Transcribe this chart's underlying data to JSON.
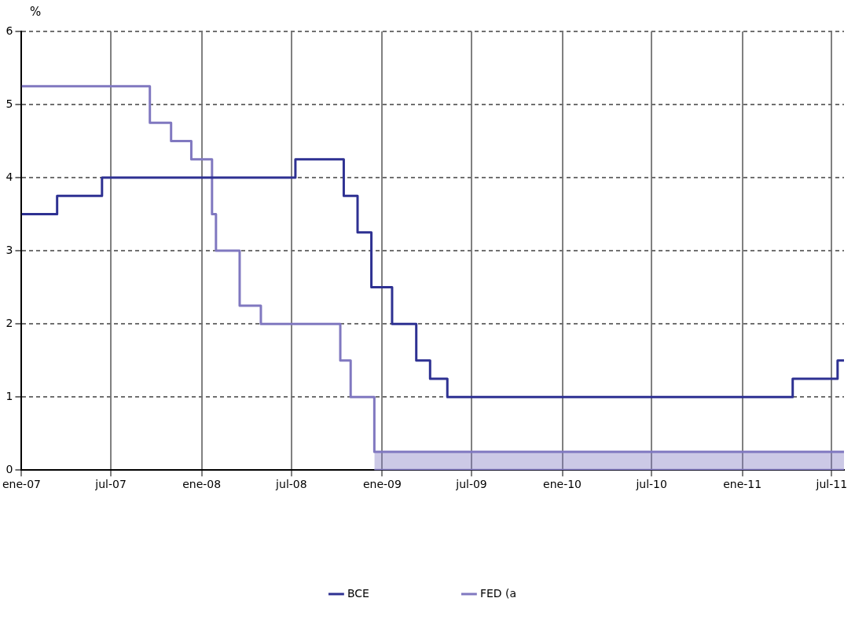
{
  "chart_data": {
    "type": "step",
    "ylabel": "%",
    "xlim": [
      "2007-01-01",
      "2011-07-26"
    ],
    "xticks": [
      {
        "value": "2007-01-01",
        "label": "ene-07"
      },
      {
        "value": "2007-07-01",
        "label": "jul-07"
      },
      {
        "value": "2008-01-01",
        "label": "ene-08"
      },
      {
        "value": "2008-07-01",
        "label": "jul-08"
      },
      {
        "value": "2009-01-01",
        "label": "ene-09"
      },
      {
        "value": "2009-07-01",
        "label": "jul-09"
      },
      {
        "value": "2010-01-01",
        "label": "ene-10"
      },
      {
        "value": "2010-07-01",
        "label": "jul-10"
      },
      {
        "value": "2011-01-01",
        "label": "ene-11"
      },
      {
        "value": "2011-07-01",
        "label": "jul-11"
      }
    ],
    "ylim": [
      0,
      6
    ],
    "yticks": [
      0,
      1,
      2,
      3,
      4,
      5,
      6
    ],
    "grid": true,
    "legend": "bottom",
    "line_style": "solid",
    "marker": "none",
    "series": [
      {
        "name": "BCE",
        "color": "#2e3192",
        "x": [
          "2007-01-01",
          "2007-03-14",
          "2007-06-13",
          "2008-07-09",
          "2008-10-15",
          "2008-11-12",
          "2008-12-10",
          "2009-01-21",
          "2009-03-11",
          "2009-04-08",
          "2009-05-13",
          "2011-04-13",
          "2011-07-13",
          "2011-07-26"
        ],
        "values": [
          3.5,
          3.75,
          4,
          4.25,
          3.75,
          3.25,
          2.5,
          2,
          1.5,
          1.25,
          1,
          1.25,
          1.5,
          1.5
        ]
      },
      {
        "name": "FED (a",
        "color": "#8078c0",
        "x": [
          "2007-01-01",
          "2007-09-18",
          "2007-10-31",
          "2007-12-11",
          "2008-01-22",
          "2008-01-30",
          "2008-03-18",
          "2008-04-30",
          "2008-10-08",
          "2008-10-29",
          "2008-12-16",
          "2011-07-26"
        ],
        "values": [
          5.25,
          4.75,
          4.5,
          4.25,
          3.5,
          3,
          2.25,
          2,
          1.5,
          1,
          0.25,
          0.25
        ],
        "lower": [
          null,
          null,
          null,
          null,
          null,
          null,
          null,
          null,
          null,
          null,
          0,
          0
        ],
        "upper": [
          null,
          null,
          null,
          null,
          null,
          null,
          null,
          null,
          null,
          null,
          0.25,
          0.25
        ]
      }
    ]
  }
}
